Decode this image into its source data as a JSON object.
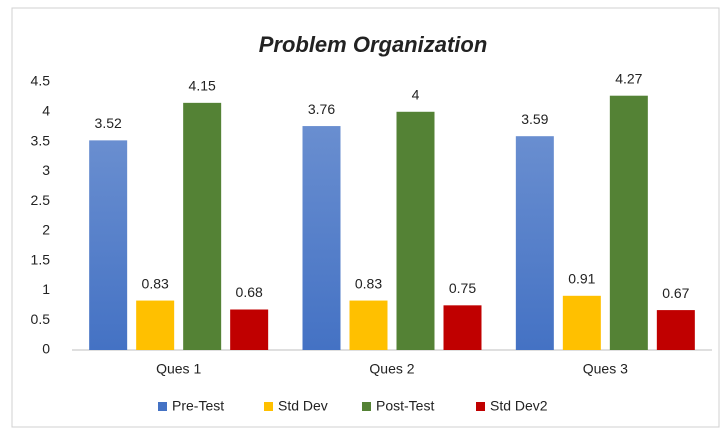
{
  "chart_data": {
    "type": "bar",
    "title": "Problem Organization",
    "categories": [
      "Ques 1",
      "Ques 2",
      "Ques 3"
    ],
    "series": [
      {
        "name": "Pre-Test",
        "color": "#4472c4",
        "values": [
          3.52,
          3.76,
          3.59
        ]
      },
      {
        "name": "Std Dev",
        "color": "#ffc000",
        "values": [
          0.83,
          0.83,
          0.91
        ]
      },
      {
        "name": "Post-Test",
        "color": "#548235",
        "values": [
          4.15,
          4,
          4.27
        ]
      },
      {
        "name": "Std Dev2",
        "color": "#c00000",
        "values": [
          0.68,
          0.75,
          0.67
        ]
      }
    ],
    "ylim": [
      0,
      4.5
    ],
    "yticks": [
      0,
      0.5,
      1,
      1.5,
      2,
      2.5,
      3,
      3.5,
      4,
      4.5
    ],
    "grid": false,
    "legend": "bottom"
  }
}
